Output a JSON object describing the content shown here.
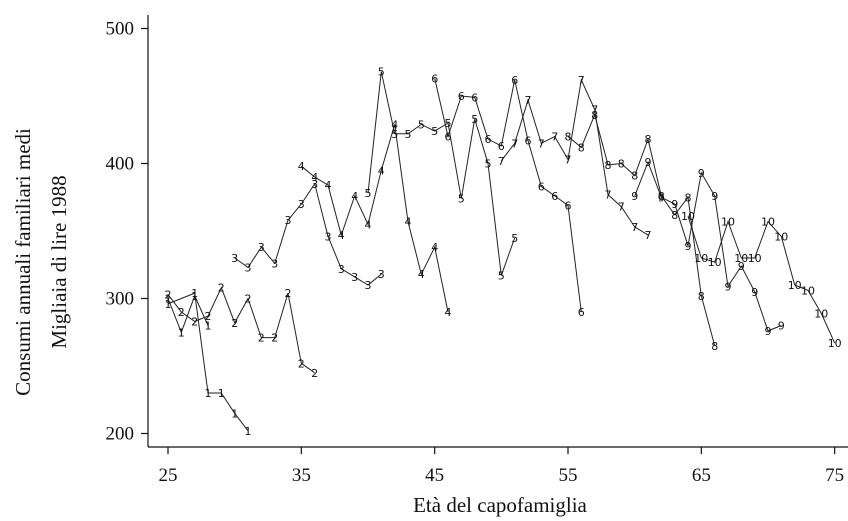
{
  "chart_data": {
    "type": "line",
    "title": "",
    "xlabel": "Età del capofamiglia",
    "ylabel": [
      "Consumi annuali familiari medi",
      "Migliaia di lire 1988"
    ],
    "xlim": [
      23.5,
      76
    ],
    "ylim": [
      190,
      510
    ],
    "xticks": [
      25,
      35,
      45,
      55,
      65,
      75
    ],
    "yticks": [
      200,
      300,
      400,
      500
    ],
    "grid": false,
    "legend": "none",
    "series": [
      {
        "marker": "1",
        "points": [
          [
            25,
            296
          ],
          [
            27,
            304
          ],
          [
            28,
            230
          ],
          [
            29,
            230
          ],
          [
            30,
            215
          ],
          [
            31,
            202
          ]
        ]
      },
      {
        "marker": "1",
        "points": [
          [
            25,
            300
          ],
          [
            26,
            275
          ],
          [
            27,
            302
          ],
          [
            28,
            280
          ]
        ]
      },
      {
        "marker": "2",
        "points": [
          [
            25,
            303
          ],
          [
            26,
            290
          ],
          [
            27,
            283
          ],
          [
            28,
            287
          ],
          [
            29,
            308
          ],
          [
            30,
            282
          ],
          [
            31,
            300
          ],
          [
            32,
            271
          ],
          [
            33,
            271
          ],
          [
            34,
            304
          ],
          [
            35,
            252
          ],
          [
            36,
            245
          ]
        ]
      },
      {
        "marker": "3",
        "points": [
          [
            30,
            330
          ],
          [
            31,
            323
          ],
          [
            32,
            338
          ],
          [
            33,
            326
          ],
          [
            34,
            358
          ],
          [
            35,
            370
          ],
          [
            36,
            385
          ],
          [
            37,
            346
          ],
          [
            38,
            322
          ],
          [
            39,
            316
          ],
          [
            40,
            310
          ],
          [
            41,
            318
          ]
        ]
      },
      {
        "marker": "4",
        "points": [
          [
            35,
            398
          ],
          [
            36,
            390
          ],
          [
            37,
            384
          ],
          [
            38,
            347
          ],
          [
            39,
            376
          ],
          [
            40,
            355
          ],
          [
            41,
            395
          ],
          [
            42,
            429
          ],
          [
            43,
            357
          ],
          [
            44,
            318
          ],
          [
            45,
            338
          ],
          [
            46,
            290
          ]
        ]
      },
      {
        "marker": "5",
        "points": [
          [
            40,
            378
          ],
          [
            41,
            468
          ],
          [
            42,
            422
          ],
          [
            43,
            422
          ],
          [
            44,
            429
          ],
          [
            45,
            424
          ],
          [
            46,
            430
          ],
          [
            47,
            374
          ],
          [
            48,
            433
          ],
          [
            49,
            400
          ],
          [
            50,
            317
          ],
          [
            51,
            345
          ]
        ]
      },
      {
        "marker": "6",
        "points": [
          [
            45,
            463
          ],
          [
            46,
            420
          ],
          [
            47,
            450
          ],
          [
            48,
            449
          ],
          [
            49,
            418
          ],
          [
            50,
            413
          ],
          [
            51,
            462
          ],
          [
            52,
            417
          ],
          [
            53,
            383
          ],
          [
            54,
            376
          ],
          [
            55,
            369
          ],
          [
            56,
            290
          ]
        ]
      },
      {
        "marker": "7",
        "points": [
          [
            50,
            402
          ],
          [
            51,
            415
          ],
          [
            52,
            447
          ],
          [
            53,
            415
          ],
          [
            54,
            420
          ],
          [
            55,
            403
          ],
          [
            56,
            462
          ],
          [
            57,
            440
          ],
          [
            58,
            377
          ],
          [
            59,
            368
          ],
          [
            60,
            353
          ],
          [
            61,
            347
          ]
        ]
      },
      {
        "marker": "8",
        "points": [
          [
            55,
            420
          ],
          [
            56,
            412
          ],
          [
            57,
            436
          ],
          [
            58,
            399
          ],
          [
            59,
            400
          ],
          [
            60,
            391
          ],
          [
            61,
            418
          ],
          [
            62,
            376
          ],
          [
            63,
            362
          ],
          [
            64,
            375
          ],
          [
            65,
            302
          ],
          [
            66,
            265
          ]
        ]
      },
      {
        "marker": "9",
        "points": [
          [
            60,
            376
          ],
          [
            61,
            401
          ],
          [
            62,
            375
          ],
          [
            63,
            370
          ],
          [
            64,
            339
          ],
          [
            65,
            393
          ],
          [
            66,
            376
          ],
          [
            67,
            309
          ],
          [
            68,
            324
          ],
          [
            69,
            305
          ],
          [
            70,
            276
          ],
          [
            71,
            280
          ]
        ]
      },
      {
        "marker": "10",
        "points": [
          [
            64,
            361
          ],
          [
            65,
            330
          ],
          [
            66,
            327
          ],
          [
            67,
            357
          ],
          [
            68,
            330
          ],
          [
            69,
            330
          ],
          [
            70,
            357
          ],
          [
            71,
            346
          ],
          [
            72,
            310
          ],
          [
            73,
            306
          ],
          [
            74,
            289
          ],
          [
            75,
            267
          ]
        ]
      }
    ]
  }
}
